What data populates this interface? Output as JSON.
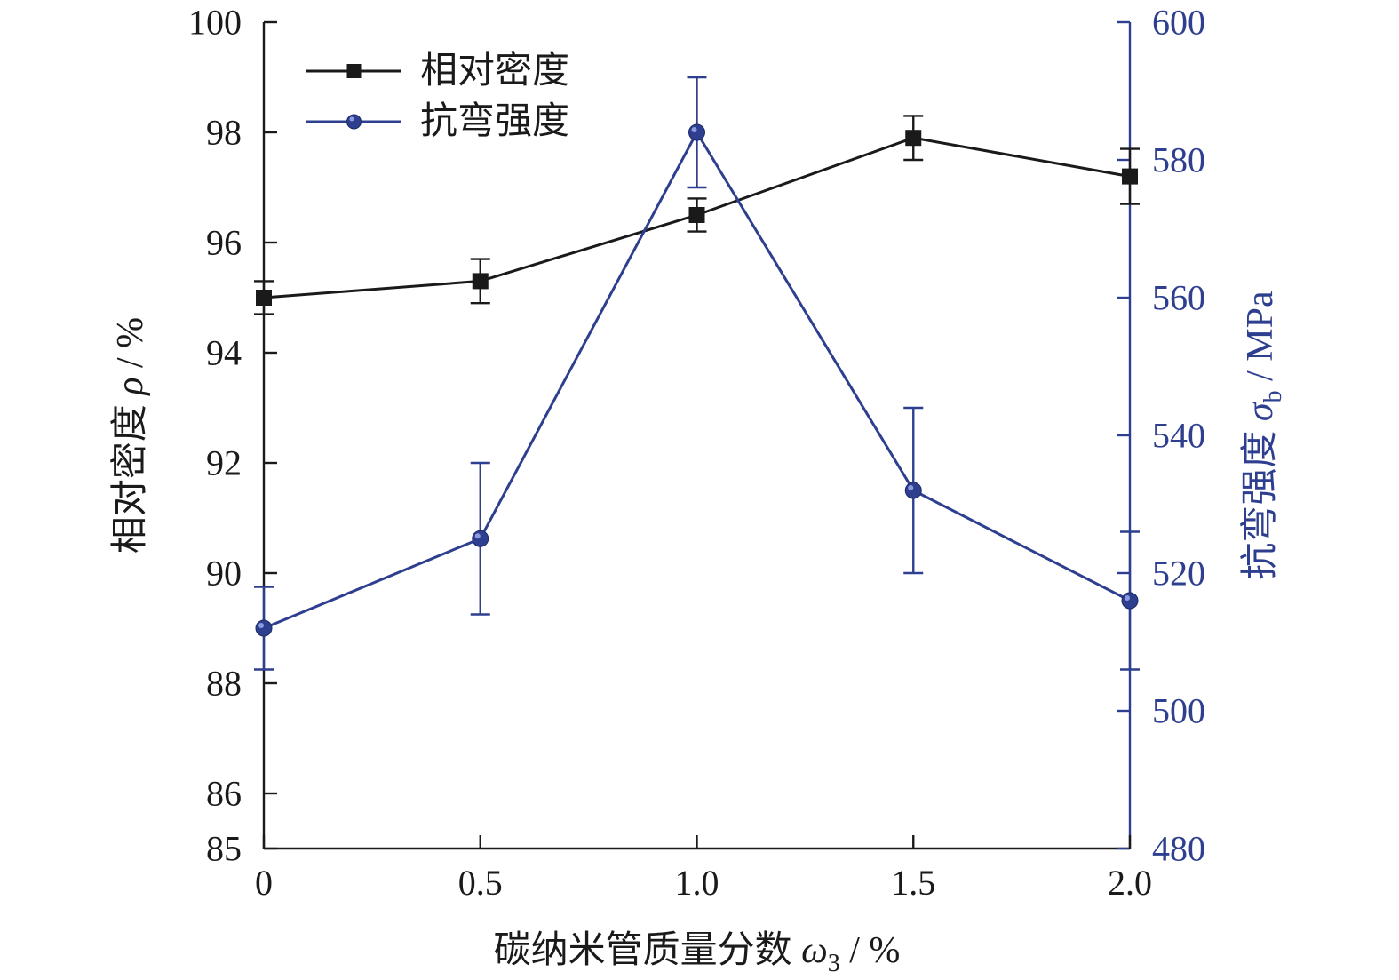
{
  "chart_data": {
    "type": "line",
    "x": [
      0,
      0.5,
      1.0,
      1.5,
      2.0
    ],
    "x_tick_labels": [
      "0",
      "0.5",
      "1.0",
      "1.5",
      "2.0"
    ],
    "xlim": [
      0,
      2.0
    ],
    "xlabel": {
      "prefix": "碳纳米管质量分数 ",
      "symbol": "ω",
      "subscript": "3",
      "suffix": " / %"
    },
    "y_left": {
      "lim": [
        85,
        100
      ],
      "ticks": [
        85,
        86,
        88,
        90,
        92,
        94,
        96,
        98,
        100
      ],
      "tick_labels": [
        "85",
        "86",
        "88",
        "90",
        "92",
        "94",
        "96",
        "98",
        "100"
      ],
      "label": {
        "prefix": "相对密度 ",
        "symbol": "ρ",
        "suffix": " / %"
      },
      "color": "#1a1a1a"
    },
    "y_right": {
      "lim": [
        480,
        600
      ],
      "ticks": [
        480,
        500,
        520,
        540,
        560,
        580,
        600
      ],
      "tick_labels": [
        "480",
        "500",
        "520",
        "540",
        "560",
        "580",
        "600"
      ],
      "label": {
        "prefix": "抗弯强度 ",
        "symbol": "σ",
        "subscript": "b",
        "suffix": " / MPa"
      },
      "color": "#2e3f8f"
    },
    "series": [
      {
        "name": "相对密度",
        "axis": "left",
        "marker": "square",
        "color": "#1a1a1a",
        "values": [
          95.0,
          95.3,
          96.5,
          97.9,
          97.2
        ],
        "errors": [
          0.3,
          0.4,
          0.3,
          0.4,
          0.5
        ]
      },
      {
        "name": "抗弯强度",
        "axis": "right",
        "marker": "circle",
        "color": "#2e3f8f",
        "values": [
          512,
          525,
          584,
          532,
          516
        ],
        "errors": [
          6,
          11,
          8,
          12,
          10
        ]
      }
    ],
    "legend_position": "top-left",
    "grid": false
  }
}
